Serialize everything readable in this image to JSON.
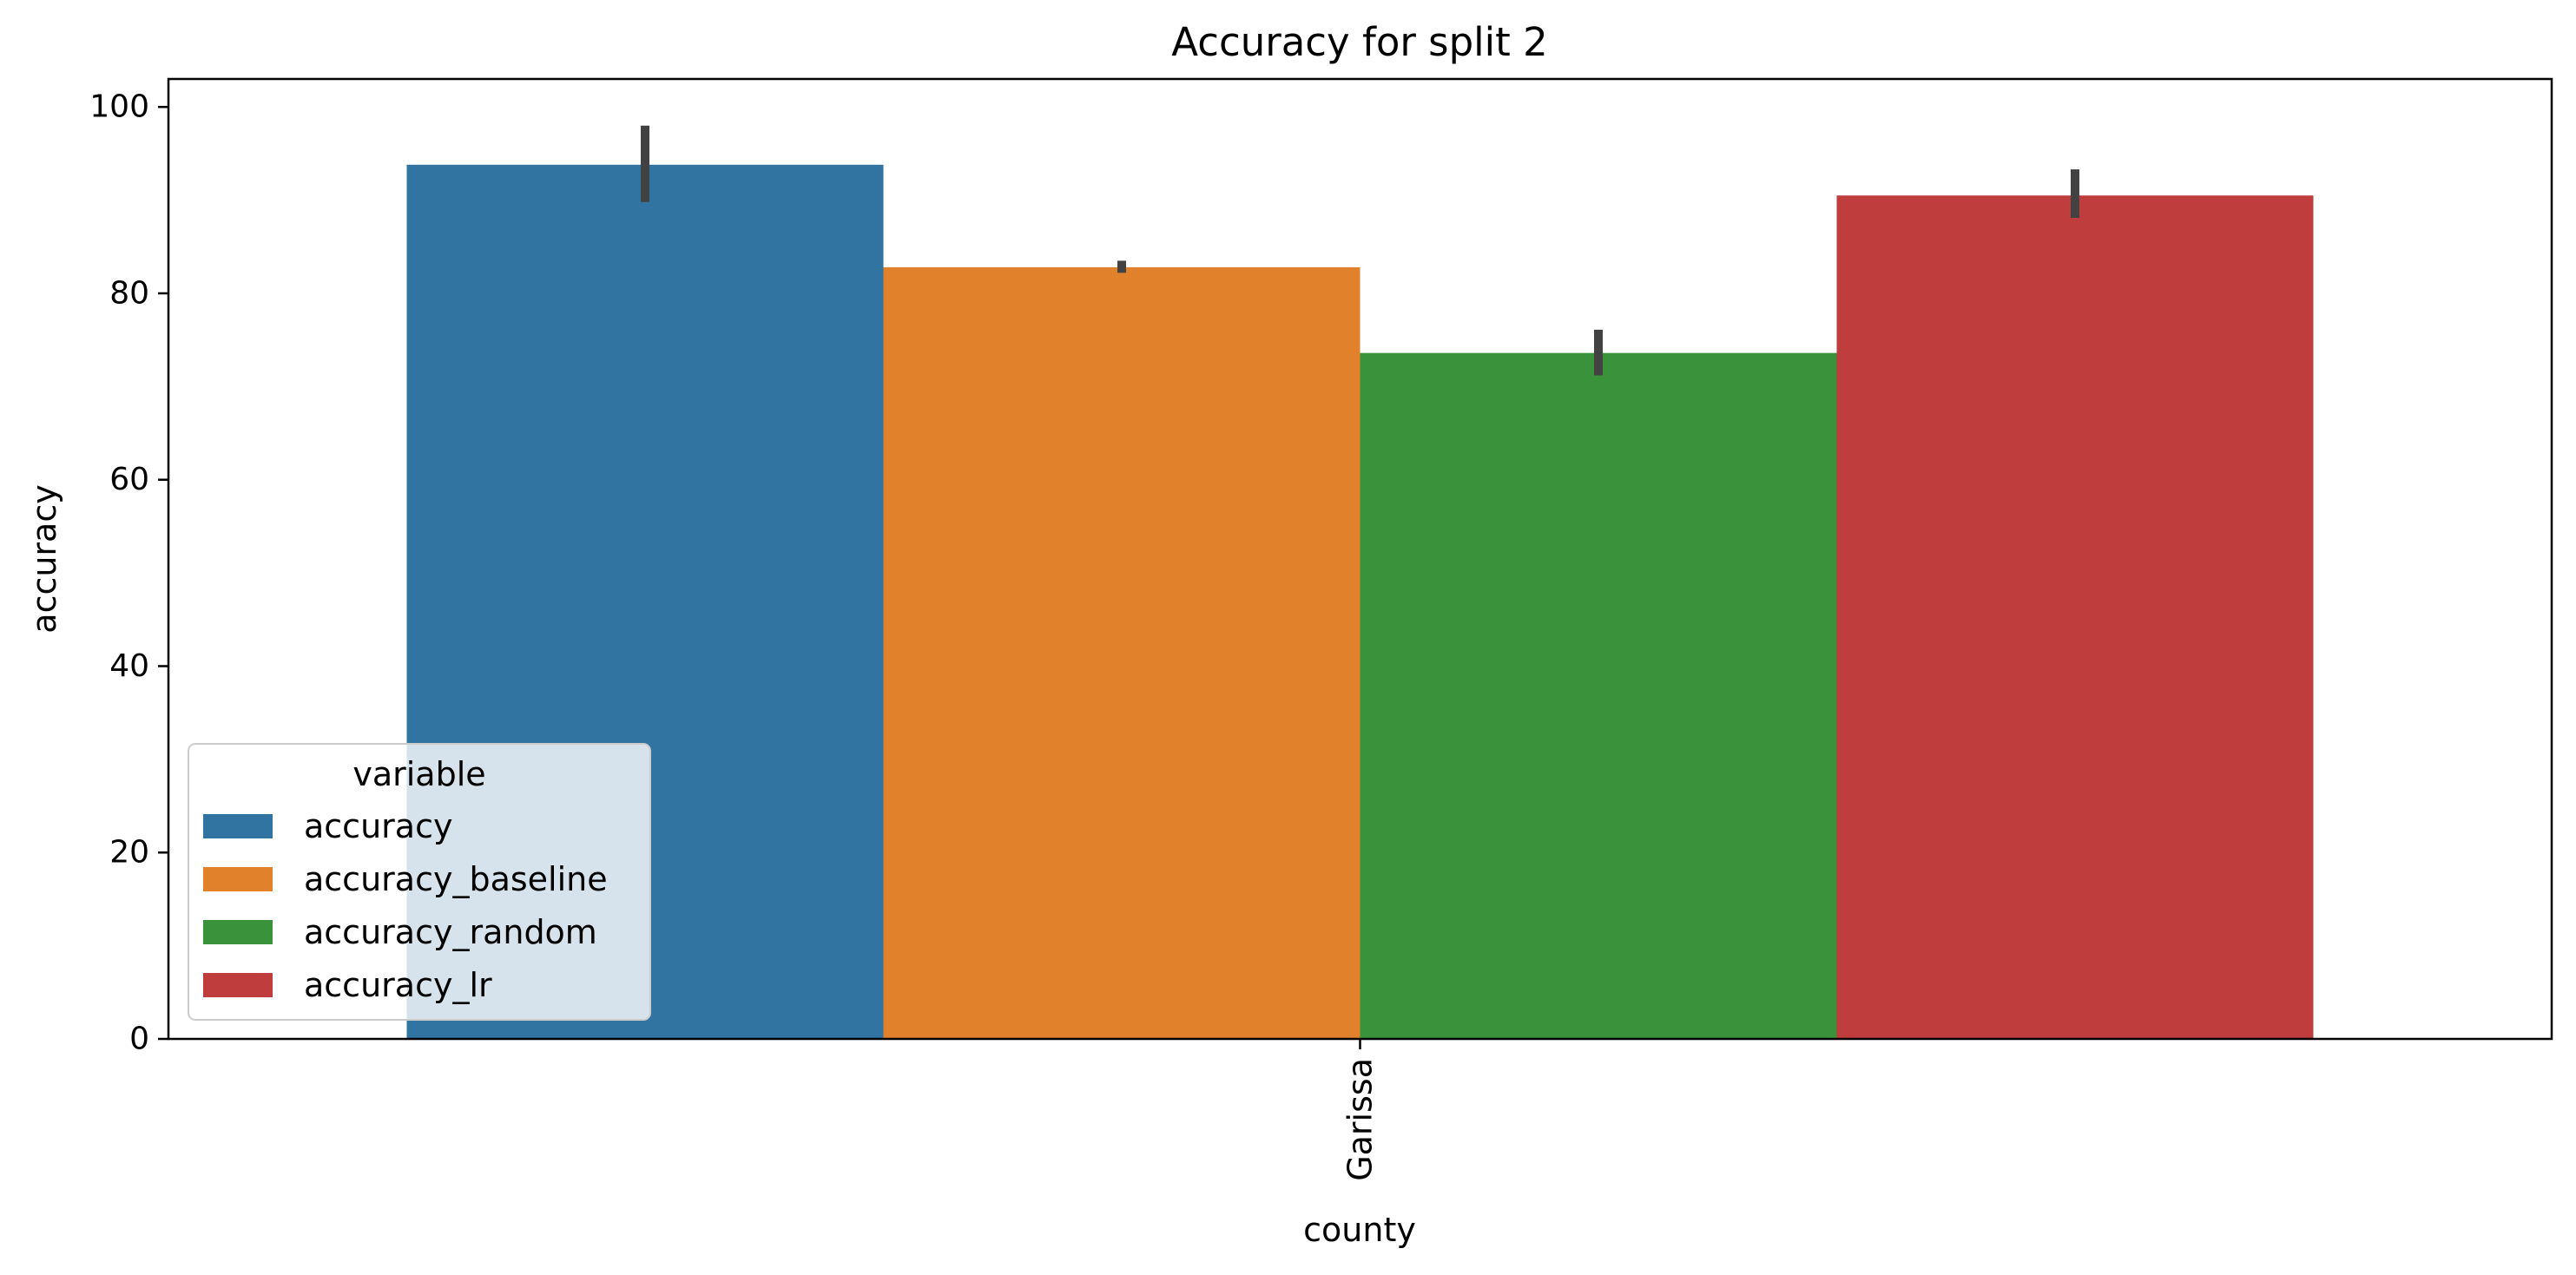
{
  "chart_data": {
    "type": "bar",
    "title": "Accuracy for split 2",
    "xlabel": "county",
    "ylabel": "accuracy",
    "categories": [
      "Garissa"
    ],
    "ylim": [
      0,
      103
    ],
    "yticks": [
      0,
      20,
      40,
      60,
      80,
      100
    ],
    "grid": false,
    "legend": {
      "title": "variable",
      "placement": "lower-left"
    },
    "series": [
      {
        "name": "accuracy",
        "values": [
          93.8
        ],
        "error": [
          [
            89.8,
            98.0
          ]
        ],
        "color": "#3274a1"
      },
      {
        "name": "accuracy_baseline",
        "values": [
          82.8
        ],
        "error": [
          [
            82.2,
            83.5
          ]
        ],
        "color": "#e1812c"
      },
      {
        "name": "accuracy_random",
        "values": [
          73.6
        ],
        "error": [
          [
            71.2,
            76.1
          ]
        ],
        "color": "#3a923a"
      },
      {
        "name": "accuracy_lr",
        "values": [
          90.5
        ],
        "error": [
          [
            88.1,
            93.3
          ]
        ],
        "color": "#c03d3e"
      }
    ],
    "errorbar_color": "#424242"
  }
}
